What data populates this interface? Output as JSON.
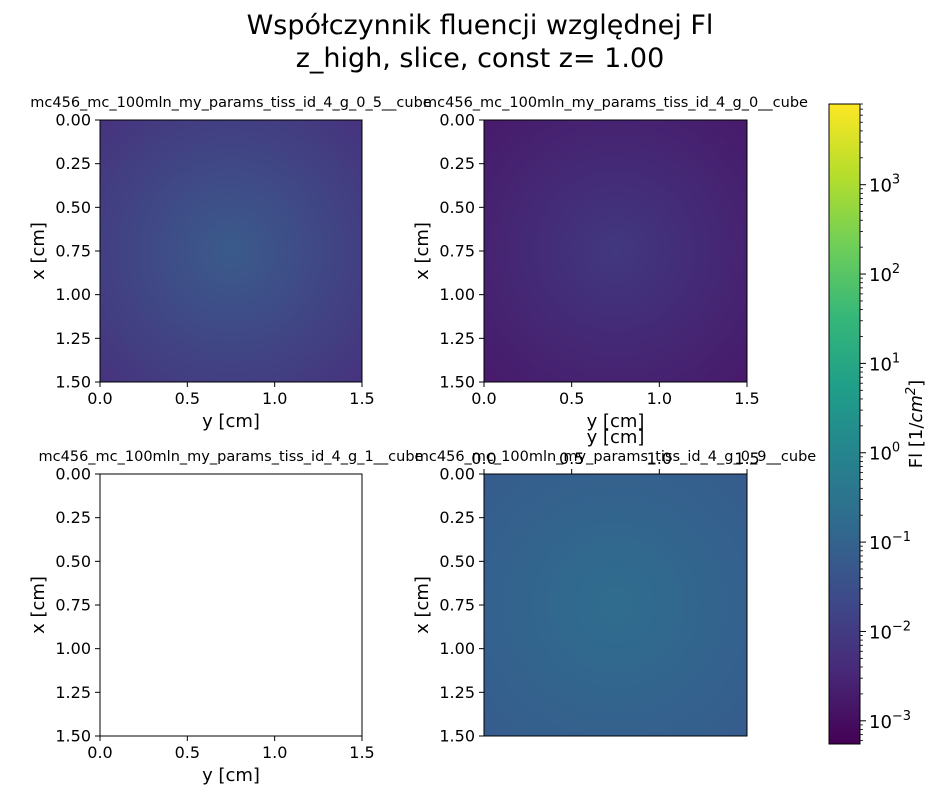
{
  "figure": {
    "title_line1": "Współczynnik fluencji względnej Fl",
    "title_line2": "z_high, slice, const z= 1.00"
  },
  "chart_data": [
    {
      "type": "heatmap",
      "title": "mc456_mc_100mln_my_params_tiss_id_4_g_0_5__cube",
      "xlabel": "y [cm]",
      "ylabel": "x [cm]",
      "xlim": [
        0.0,
        1.5
      ],
      "ylim": [
        0.0,
        1.5
      ],
      "y_inverted": true,
      "x_ticks": [
        "0.0",
        "0.5",
        "1.0",
        "1.5"
      ],
      "y_ticks": [
        "0.00",
        "0.25",
        "0.50",
        "0.75",
        "1.00",
        "1.25",
        "1.50"
      ],
      "x_axis_position": "bottom",
      "center_value": 0.05,
      "edge_value": 0.02,
      "color_center": "#3a5b8c",
      "color_edge": "#46337e"
    },
    {
      "type": "heatmap",
      "title": "mc456_mc_100mln_my_params_tiss_id_4_g_0__cube",
      "xlabel": "y [cm]",
      "ylabel": "x [cm]",
      "xlim": [
        0.0,
        1.5
      ],
      "ylim": [
        0.0,
        1.5
      ],
      "y_inverted": true,
      "x_ticks": [
        "0.0",
        "0.5",
        "1.0",
        "1.5"
      ],
      "y_ticks": [
        "0.00",
        "0.25",
        "0.50",
        "0.75",
        "1.00",
        "1.25",
        "1.50"
      ],
      "x_axis_position": "bottom",
      "center_value": 0.015,
      "edge_value": 0.003,
      "color_center": "#41387f",
      "color_edge": "#481a6c"
    },
    {
      "type": "heatmap",
      "title": "mc456_mc_100mln_my_params_tiss_id_4_g_1__cube",
      "xlabel": "y [cm]",
      "ylabel": "x [cm]",
      "xlim": [
        0.0,
        1.5
      ],
      "ylim": [
        0.0,
        1.5
      ],
      "y_inverted": true,
      "x_ticks": [
        "0.0",
        "0.5",
        "1.0",
        "1.5"
      ],
      "y_ticks": [
        "0.00",
        "0.25",
        "0.50",
        "0.75",
        "1.00",
        "1.25",
        "1.50"
      ],
      "x_axis_position": "bottom",
      "center_value": null,
      "edge_value": null,
      "color_center": "#ffffff",
      "color_edge": "#ffffff"
    },
    {
      "type": "heatmap",
      "title": "mc456_mc_100mln_my_params_tiss_id_4_g_0_9__cube",
      "xlabel": "y [cm]",
      "ylabel": "x [cm]",
      "xlim": [
        0.0,
        1.5
      ],
      "ylim": [
        0.0,
        1.5
      ],
      "y_inverted": true,
      "x_ticks": [
        "0.0",
        "0.5",
        "1.0",
        "1.5"
      ],
      "y_ticks": [
        "0.00",
        "0.25",
        "0.50",
        "0.75",
        "1.00",
        "1.25",
        "1.50"
      ],
      "x_axis_position": "top",
      "center_value": 0.3,
      "edge_value": 0.1,
      "color_center": "#2f6d8e",
      "color_edge": "#365c8d"
    }
  ],
  "colorbar": {
    "label_prefix": "Fl [1/",
    "label_math": "cm",
    "label_exp": "2",
    "label_suffix": "]",
    "scale": "log",
    "vmin": 0.00055,
    "vmax": 8000,
    "ticks": [
      {
        "value": 0.001,
        "base": "10",
        "exp": "−3"
      },
      {
        "value": 0.01,
        "base": "10",
        "exp": "−2"
      },
      {
        "value": 0.1,
        "base": "10",
        "exp": "−1"
      },
      {
        "value": 1,
        "base": "10",
        "exp": "0"
      },
      {
        "value": 10,
        "base": "10",
        "exp": "1"
      },
      {
        "value": 100,
        "base": "10",
        "exp": "2"
      },
      {
        "value": 1000,
        "base": "10",
        "exp": "3"
      }
    ],
    "colormap": [
      "#440154",
      "#482878",
      "#3e4989",
      "#31688e",
      "#26828e",
      "#1f9e89",
      "#35b779",
      "#6ece58",
      "#b5de2b",
      "#fde725"
    ]
  }
}
